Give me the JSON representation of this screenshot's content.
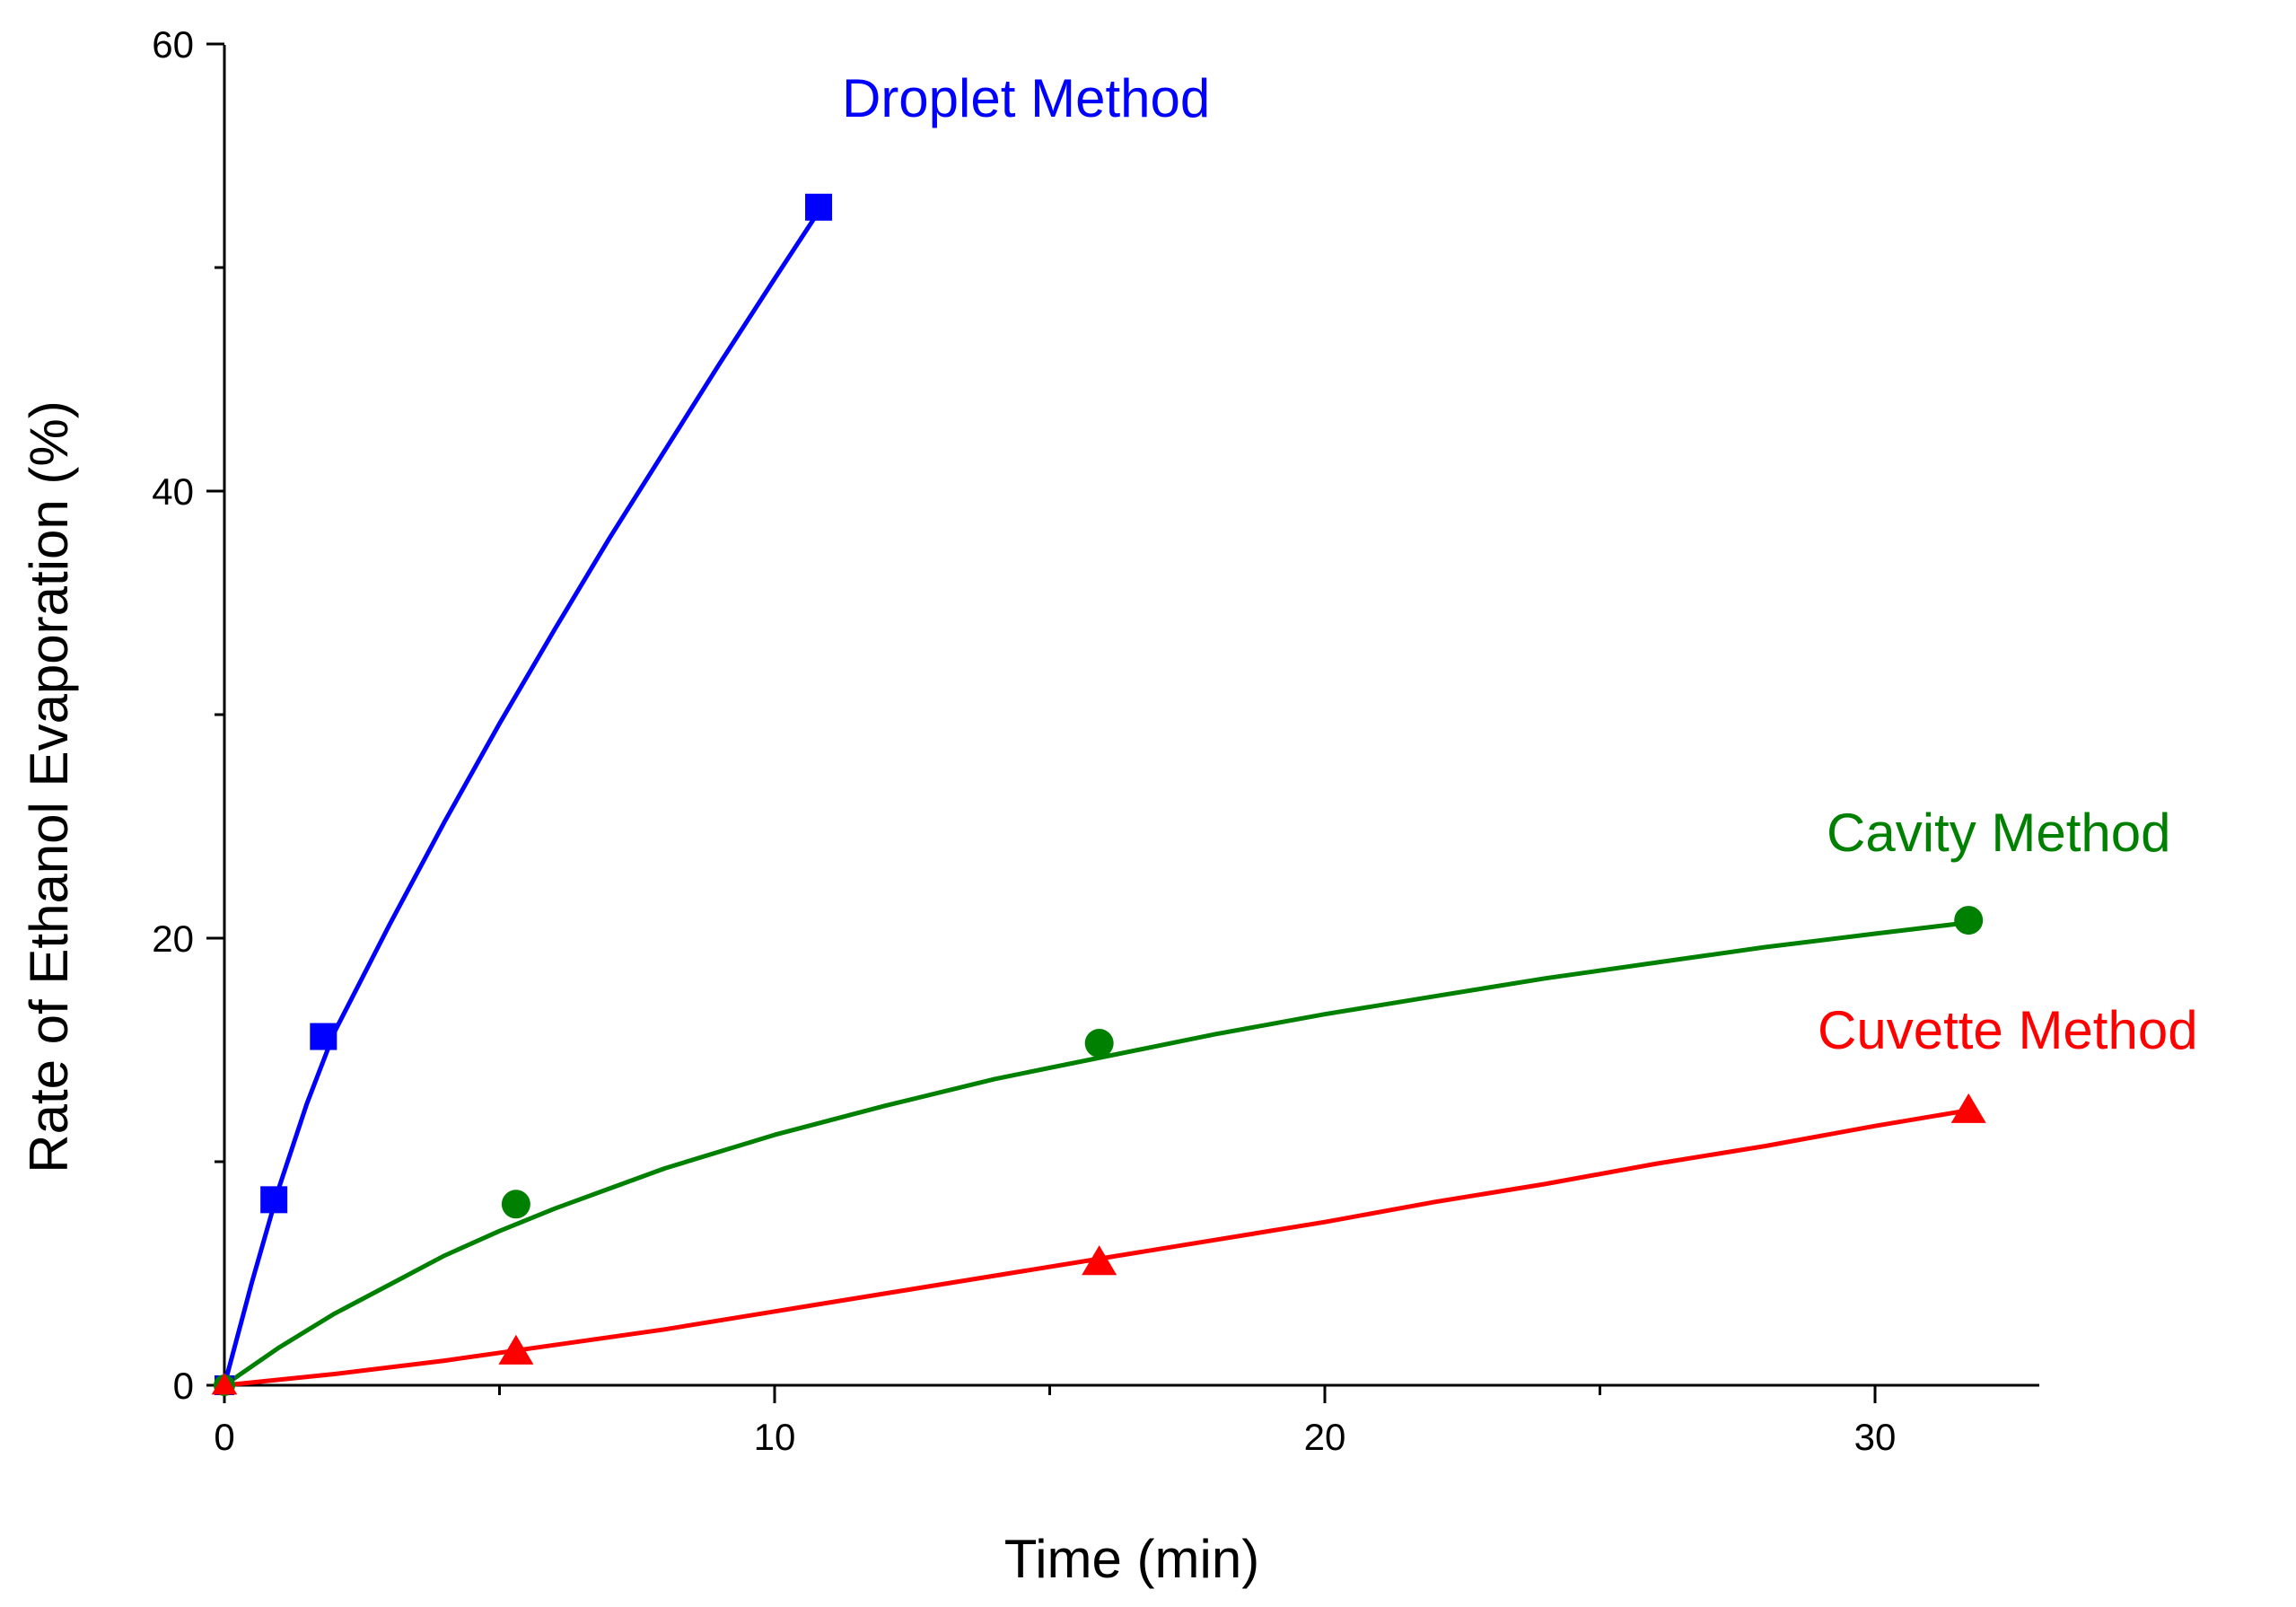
{
  "chart_data": {
    "type": "line",
    "title": "",
    "xlabel": "Time (min)",
    "ylabel": "Rate of Ethanol Evaporation (%)",
    "xlim": [
      0,
      33
    ],
    "ylim": [
      0,
      60
    ],
    "xticks": [
      0,
      10,
      20,
      30
    ],
    "xticks_minor": [
      5,
      15,
      25
    ],
    "yticks": [
      0,
      20,
      40,
      60
    ],
    "yticks_minor": [
      10,
      30,
      50
    ],
    "grid": false,
    "legend": "inline labels",
    "series": [
      {
        "name": "Droplet Method",
        "color": "#0000ff",
        "marker": "square",
        "x": [
          0,
          0.9,
          1.8,
          10.8
        ],
        "y": [
          0,
          8.3,
          15.6,
          52.7
        ],
        "fit_curve": {
          "x": [
            0,
            0.5,
            1,
            1.5,
            2,
            3,
            4,
            5,
            6,
            7,
            8,
            9,
            10,
            10.8
          ],
          "y": [
            0,
            4.6,
            8.9,
            12.6,
            15.8,
            20.6,
            25.2,
            29.6,
            33.8,
            37.9,
            41.8,
            45.7,
            49.5,
            52.5
          ]
        }
      },
      {
        "name": "Cavity Method",
        "color": "#008000",
        "marker": "circle",
        "x": [
          0,
          5.3,
          15.9,
          31.7
        ],
        "y": [
          0,
          8.1,
          15.3,
          20.8
        ],
        "fit_curve": {
          "x": [
            0,
            1,
            2,
            3,
            4,
            5,
            6,
            7,
            8,
            10,
            12,
            14,
            16,
            18,
            20,
            22,
            24,
            26,
            28,
            30,
            31.7
          ],
          "y": [
            0,
            1.7,
            3.2,
            4.5,
            5.8,
            6.9,
            7.9,
            8.8,
            9.7,
            11.2,
            12.5,
            13.7,
            14.7,
            15.7,
            16.6,
            17.4,
            18.2,
            18.9,
            19.6,
            20.2,
            20.7
          ]
        }
      },
      {
        "name": "Cuvette Method",
        "color": "#ff0000",
        "marker": "triangle",
        "x": [
          0,
          5.3,
          15.9,
          31.7
        ],
        "y": [
          0,
          1.5,
          5.5,
          12.3
        ],
        "fit_curve": {
          "x": [
            0,
            2,
            4,
            6,
            8,
            10,
            12,
            14,
            16,
            18,
            20,
            22,
            24,
            26,
            28,
            30,
            31.7
          ],
          "y": [
            0,
            0.5,
            1.1,
            1.8,
            2.5,
            3.3,
            4.1,
            4.9,
            5.7,
            6.5,
            7.3,
            8.2,
            9.0,
            9.9,
            10.7,
            11.6,
            12.3
          ]
        }
      }
    ]
  }
}
